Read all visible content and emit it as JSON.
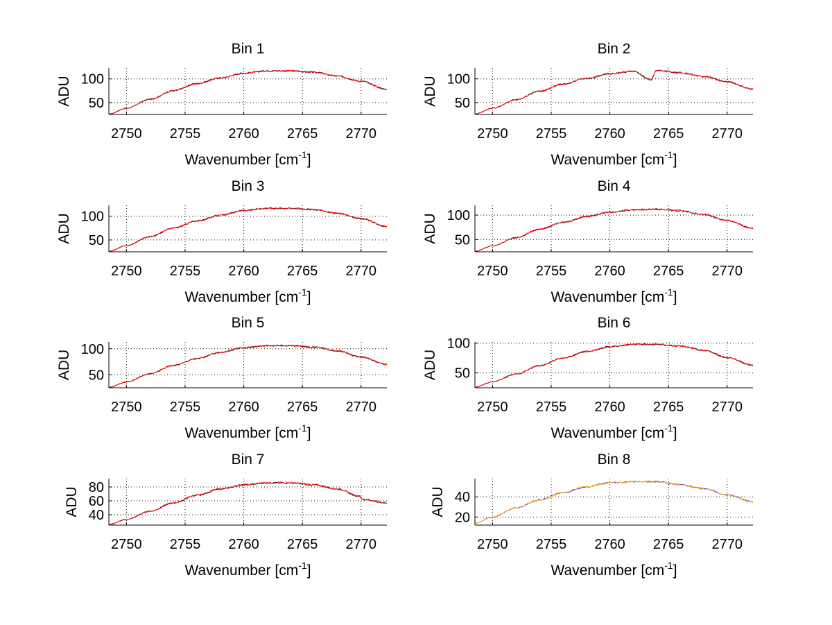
{
  "figure": {
    "background": "#ffffff",
    "line_colors": {
      "primary": "#ff0000",
      "secondary": "#000000",
      "bin8_primary": "#ffa500",
      "bin8_secondary": "#0000ff"
    }
  },
  "chart_data": [
    {
      "type": "line",
      "title": "Bin 1",
      "xlabel": "Wavenumber [cm",
      "xlabel_sup": "-1",
      "xlabel_end": "]",
      "ylabel": "ADU",
      "xlim": [
        2748.5,
        2772.2
      ],
      "ylim": [
        25,
        123
      ],
      "xticks": [
        2750,
        2755,
        2760,
        2765,
        2770
      ],
      "yticks": [
        50,
        100
      ],
      "grid": true,
      "series": [
        {
          "color": "#ff0000",
          "x": [
            2748.5,
            2750,
            2752,
            2754,
            2756,
            2758,
            2760,
            2762,
            2764,
            2766,
            2768,
            2770,
            2772.2
          ],
          "values": [
            26,
            38,
            57,
            75,
            90,
            102,
            112,
            117,
            117,
            114,
            106,
            95,
            78
          ]
        }
      ]
    },
    {
      "type": "line",
      "title": "Bin 2",
      "xlabel": "Wavenumber [cm",
      "xlabel_sup": "-1",
      "xlabel_end": "]",
      "ylabel": "ADU",
      "xlim": [
        2748.5,
        2772.2
      ],
      "ylim": [
        25,
        123
      ],
      "xticks": [
        2750,
        2755,
        2760,
        2765,
        2770
      ],
      "yticks": [
        50,
        100
      ],
      "grid": true,
      "series": [
        {
          "color": "#ff0000",
          "x": [
            2748.5,
            2750,
            2752,
            2754,
            2756,
            2758,
            2760,
            2762,
            2763.5,
            2764,
            2766,
            2768,
            2770,
            2772.2
          ],
          "values": [
            26,
            38,
            56,
            74,
            89,
            101,
            111,
            116,
            98,
            118,
            113,
            105,
            94,
            78
          ]
        }
      ]
    },
    {
      "type": "line",
      "title": "Bin 3",
      "xlabel": "Wavenumber [cm",
      "xlabel_sup": "-1",
      "xlabel_end": "]",
      "ylabel": "ADU",
      "xlim": [
        2748.5,
        2772.2
      ],
      "ylim": [
        25,
        123
      ],
      "xticks": [
        2750,
        2755,
        2760,
        2765,
        2770
      ],
      "yticks": [
        50,
        100
      ],
      "grid": true,
      "series": [
        {
          "color": "#ff0000",
          "x": [
            2748.5,
            2750,
            2752,
            2754,
            2756,
            2758,
            2760,
            2762,
            2764,
            2766,
            2768,
            2770,
            2772.2
          ],
          "values": [
            26,
            38,
            57,
            75,
            90,
            102,
            112,
            117,
            117,
            114,
            106,
            95,
            78
          ]
        }
      ]
    },
    {
      "type": "line",
      "title": "Bin 4",
      "xlabel": "Wavenumber [cm",
      "xlabel_sup": "-1",
      "xlabel_end": "]",
      "ylabel": "ADU",
      "xlim": [
        2748.5,
        2772.2
      ],
      "ylim": [
        25,
        120
      ],
      "xticks": [
        2750,
        2755,
        2760,
        2765,
        2770
      ],
      "yticks": [
        50,
        100
      ],
      "grid": true,
      "series": [
        {
          "color": "#ff0000",
          "x": [
            2748.5,
            2750,
            2752,
            2754,
            2756,
            2758,
            2760,
            2762,
            2764,
            2766,
            2768,
            2770,
            2772.2
          ],
          "values": [
            26,
            37,
            54,
            71,
            85,
            97,
            106,
            111,
            112,
            109,
            101,
            89,
            73
          ]
        }
      ]
    },
    {
      "type": "line",
      "title": "Bin 5",
      "xlabel": "Wavenumber [cm",
      "xlabel_sup": "-1",
      "xlabel_end": "]",
      "ylabel": "ADU",
      "xlim": [
        2748.5,
        2772.2
      ],
      "ylim": [
        25,
        113
      ],
      "xticks": [
        2750,
        2755,
        2760,
        2765,
        2770
      ],
      "yticks": [
        50,
        100
      ],
      "grid": true,
      "series": [
        {
          "color": "#ff0000",
          "x": [
            2748.5,
            2750,
            2752,
            2754,
            2756,
            2758,
            2760,
            2762,
            2764,
            2766,
            2768,
            2770,
            2772.2
          ],
          "values": [
            26,
            36,
            52,
            68,
            81,
            93,
            102,
            106,
            106,
            103,
            96,
            84,
            70
          ]
        }
      ]
    },
    {
      "type": "line",
      "title": "Bin 6",
      "xlabel": "Wavenumber [cm",
      "xlabel_sup": "-1",
      "xlabel_end": "]",
      "ylabel": "ADU",
      "xlim": [
        2748.5,
        2772.2
      ],
      "ylim": [
        25,
        102
      ],
      "xticks": [
        2750,
        2755,
        2760,
        2765,
        2770
      ],
      "yticks": [
        50,
        100
      ],
      "grid": true,
      "series": [
        {
          "color": "#ff0000",
          "x": [
            2748.5,
            2750,
            2752,
            2754,
            2756,
            2758,
            2760,
            2762,
            2764,
            2766,
            2768,
            2770,
            2772.2
          ],
          "values": [
            26,
            35,
            48,
            62,
            75,
            86,
            94,
            98,
            98,
            95,
            88,
            76,
            63
          ]
        }
      ]
    },
    {
      "type": "line",
      "title": "Bin 7",
      "xlabel": "Wavenumber [cm",
      "xlabel_sup": "-1",
      "xlabel_end": "]",
      "ylabel": "ADU",
      "xlim": [
        2748.5,
        2772.2
      ],
      "ylim": [
        25,
        92
      ],
      "xticks": [
        2750,
        2755,
        2760,
        2765,
        2770
      ],
      "yticks": [
        40,
        60,
        80
      ],
      "grid": true,
      "series": [
        {
          "color": "#ff0000",
          "x": [
            2748.5,
            2750,
            2752,
            2754,
            2756,
            2758,
            2760,
            2762,
            2764,
            2766,
            2768,
            2769.8,
            2770.2,
            2772.2
          ],
          "values": [
            26,
            33,
            45,
            57,
            68,
            77,
            83,
            86,
            86,
            83,
            77,
            67,
            62,
            57
          ]
        }
      ]
    },
    {
      "type": "line",
      "title": "Bin 8",
      "xlabel": "Wavenumber [cm",
      "xlabel_sup": "-1",
      "xlabel_end": "]",
      "ylabel": "ADU",
      "xlim": [
        2748.5,
        2772.2
      ],
      "ylim": [
        12,
        58
      ],
      "xticks": [
        2750,
        2755,
        2760,
        2765,
        2770
      ],
      "yticks": [
        20,
        40
      ],
      "grid": true,
      "series": [
        {
          "color": "#ffa500",
          "x": [
            2748.5,
            2750,
            2752,
            2754,
            2756,
            2758,
            2760,
            2762,
            2764,
            2766,
            2768,
            2770,
            2772.2
          ],
          "values": [
            14,
            20,
            29,
            37,
            44,
            50,
            54,
            55,
            55,
            52,
            48,
            42,
            35
          ]
        }
      ]
    }
  ]
}
